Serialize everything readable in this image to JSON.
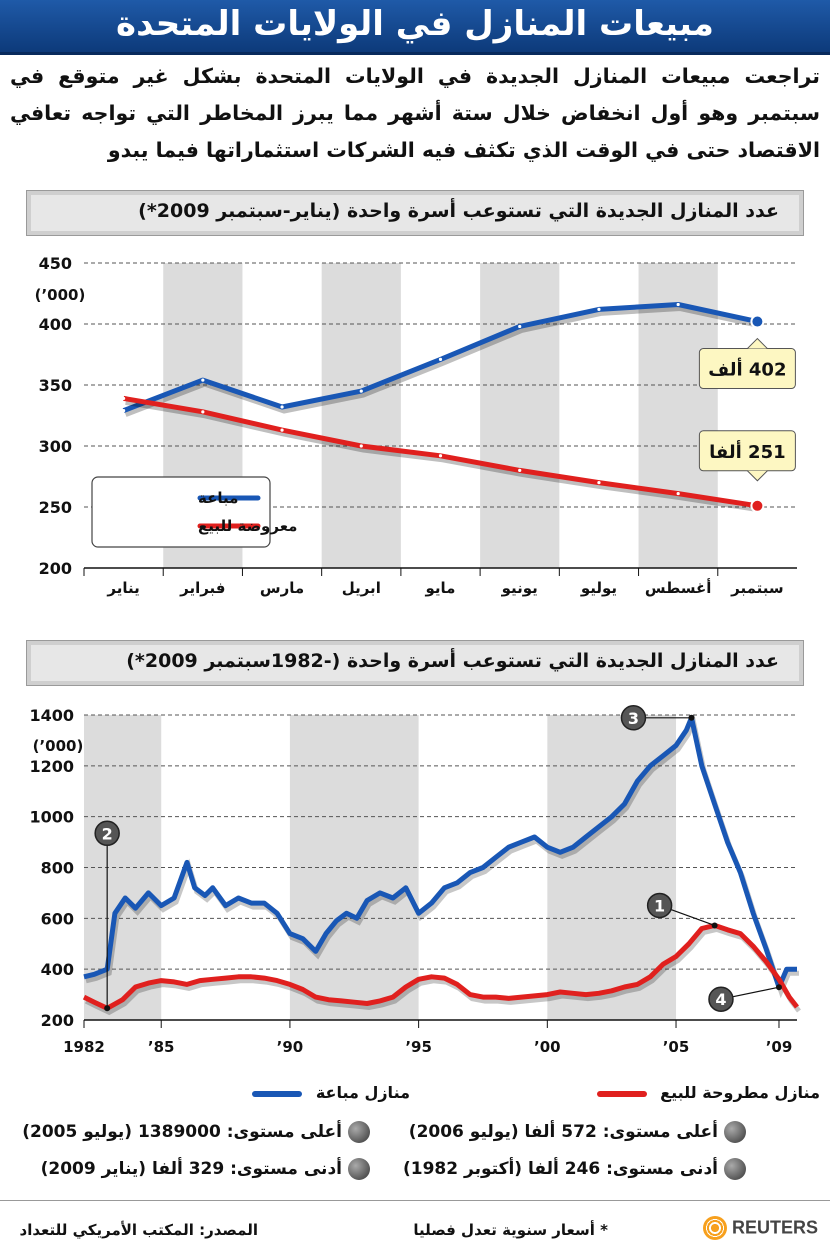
{
  "banner": {
    "title": "مبيعات المنازل في الولايات المتحدة"
  },
  "intro": {
    "text": "تراجعت مبيعات المنازل الجديدة في الولايات المتحدة بشكل غير متوقع في سبتمبر وهو أول انخفاض خلال ستة أشهر مما يبرز المخاطر التي تواجه تعافي الاقتصاد حتى في الوقت الذي تكثف فيه الشركات استثماراتها فيما يبدو"
  },
  "chart_data": [
    {
      "type": "line",
      "title": "عدد المنازل الجديدة التي تستوعب أسرة واحدة (يناير-سبتمبر 2009*)",
      "ylabel": "(’000)",
      "ylim": [
        200,
        450
      ],
      "yticks": [
        "200",
        "250",
        "300",
        "350",
        "400",
        "450"
      ],
      "categories": [
        "يناير",
        "فبراير",
        "مارس",
        "ابريل",
        "مايو",
        "يونيو",
        "يوليو",
        "أغسطس",
        "سبتمبر"
      ],
      "grid": true,
      "legend_position": "bottom-left",
      "series": [
        {
          "name": "مباعة",
          "color": "#1957b5",
          "values": [
            329,
            354,
            332,
            345,
            371,
            398,
            412,
            416,
            402
          ]
        },
        {
          "name": "معروضة للبيع",
          "color": "#e0201e",
          "values": [
            339,
            328,
            313,
            300,
            292,
            280,
            270,
            261,
            251
          ]
        }
      ],
      "callouts": [
        {
          "text": "402 ألف",
          "series": 0,
          "index": 8
        },
        {
          "text": "251 ألفا",
          "series": 1,
          "index": 8
        }
      ]
    },
    {
      "type": "line",
      "title": "عدد المنازل الجديدة التي تستوعب أسرة واحدة (-1982سبتمبر 2009*)",
      "ylabel": "(’000)",
      "ylim": [
        200,
        1400
      ],
      "yticks": [
        "200",
        "400",
        "600",
        "800",
        "1000",
        "1200",
        "1400"
      ],
      "xticks": [
        "1982",
        "’85",
        "’90",
        "’95",
        "’00",
        "’05",
        "’09"
      ],
      "grid": true,
      "series": [
        {
          "name": "منازل مباعة",
          "color": "#1957b5",
          "x": [
            1982.0,
            1982.4,
            1982.9,
            1983.2,
            1983.6,
            1984.0,
            1984.5,
            1985.0,
            1985.5,
            1986.0,
            1986.3,
            1986.7,
            1987.0,
            1987.5,
            1988.0,
            1988.5,
            1989.0,
            1989.5,
            1990.0,
            1990.5,
            1991.0,
            1991.4,
            1991.8,
            1992.2,
            1992.6,
            1993.0,
            1993.5,
            1994.0,
            1994.5,
            1995.0,
            1995.5,
            1996.0,
            1996.5,
            1997.0,
            1997.5,
            1998.0,
            1998.5,
            1999.0,
            1999.5,
            2000.0,
            2000.5,
            2001.0,
            2001.5,
            2002.0,
            2002.5,
            2003.0,
            2003.5,
            2004.0,
            2004.5,
            2005.0,
            2005.4,
            2005.6,
            2006.0,
            2006.5,
            2007.0,
            2007.5,
            2008.0,
            2008.5,
            2009.0,
            2009.3,
            2009.7
          ],
          "values": [
            370,
            380,
            400,
            620,
            680,
            640,
            700,
            650,
            680,
            820,
            720,
            690,
            720,
            650,
            680,
            660,
            660,
            620,
            540,
            520,
            470,
            540,
            590,
            620,
            600,
            670,
            700,
            680,
            720,
            620,
            660,
            720,
            740,
            780,
            800,
            840,
            880,
            900,
            920,
            880,
            860,
            880,
            920,
            960,
            1000,
            1050,
            1140,
            1200,
            1240,
            1280,
            1340,
            1389,
            1200,
            1050,
            900,
            780,
            620,
            480,
            329,
            400,
            400
          ]
        },
        {
          "name": "منازل مطروحة للبيع",
          "color": "#e0201e",
          "x": [
            1982.0,
            1982.4,
            1982.9,
            1983.5,
            1984.0,
            1984.5,
            1985.0,
            1985.5,
            1986.0,
            1986.5,
            1987.0,
            1987.5,
            1988.0,
            1988.5,
            1989.0,
            1989.5,
            1990.0,
            1990.5,
            1991.0,
            1991.5,
            1992.0,
            1992.5,
            1993.0,
            1993.5,
            1994.0,
            1994.5,
            1995.0,
            1995.5,
            1996.0,
            1996.5,
            1997.0,
            1997.5,
            1998.0,
            1998.5,
            1999.0,
            1999.5,
            2000.0,
            2000.5,
            2001.0,
            2001.5,
            2002.0,
            2002.5,
            2003.0,
            2003.5,
            2004.0,
            2004.5,
            2005.0,
            2005.5,
            2006.0,
            2006.5,
            2007.0,
            2007.5,
            2008.0,
            2008.5,
            2009.0,
            2009.4,
            2009.7
          ],
          "values": [
            290,
            270,
            246,
            280,
            330,
            345,
            355,
            350,
            340,
            355,
            360,
            365,
            370,
            370,
            365,
            355,
            340,
            320,
            290,
            280,
            275,
            270,
            265,
            275,
            290,
            330,
            360,
            370,
            365,
            340,
            300,
            290,
            290,
            285,
            290,
            295,
            300,
            310,
            305,
            300,
            305,
            315,
            330,
            340,
            370,
            420,
            450,
            500,
            560,
            572,
            555,
            540,
            490,
            430,
            360,
            290,
            251
          ]
        }
      ],
      "markers": [
        {
          "num": "1",
          "x": 2006.5,
          "y": 572
        },
        {
          "num": "2",
          "x": 1982.9,
          "y": 246
        },
        {
          "num": "3",
          "x": 2005.6,
          "y": 1389
        },
        {
          "num": "4",
          "x": 2009.0,
          "y": 329
        }
      ]
    }
  ],
  "legend2": {
    "sold": "منازل مباعة",
    "for_sale": "منازل مطروحة للبيع",
    "stats": [
      {
        "num": "1",
        "text": "أعلى مستوى: 572 ألفا (يوليو 2006)"
      },
      {
        "num": "2",
        "text": "أدنى مستوى: 246 ألفا (أكتوبر 1982)"
      },
      {
        "num": "3",
        "text": "أعلى مستوى: 1389000 (يوليو 2005)"
      },
      {
        "num": "4",
        "text": "أدنى مستوى: 329 ألفا (يناير 2009)"
      }
    ]
  },
  "footer": {
    "source": "المصدر: المكتب الأمريكي للتعداد",
    "note": "* أسعار سنوية تعدل فصليا",
    "brand": "REUTERS"
  }
}
